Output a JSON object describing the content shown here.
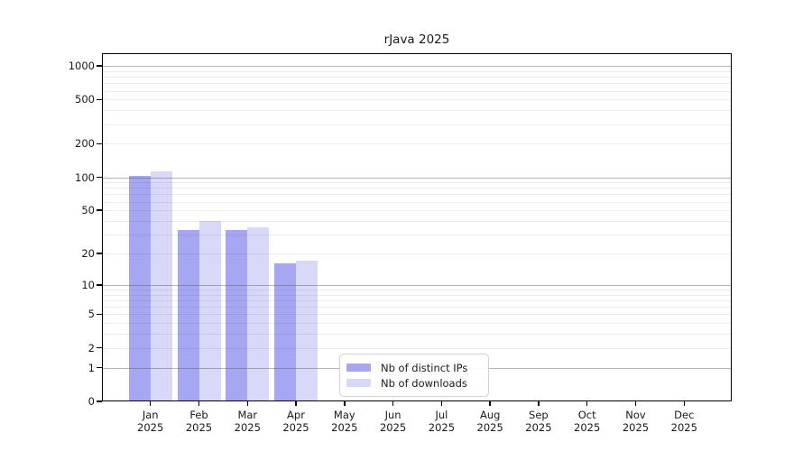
{
  "figure": {
    "title": "rJava 2025"
  },
  "chart_data": {
    "type": "bar",
    "title": "rJava 2025",
    "x_axis": {
      "months": [
        "Jan",
        "Feb",
        "Mar",
        "Apr",
        "May",
        "Jun",
        "Jul",
        "Aug",
        "Sep",
        "Oct",
        "Nov",
        "Dec"
      ],
      "year": "2025"
    },
    "y_axis": {
      "scale": "log1p",
      "ticks": [
        0,
        1,
        2,
        5,
        10,
        20,
        50,
        100,
        200,
        500,
        1000
      ],
      "tick_labels": [
        "0",
        "1",
        "2",
        "5",
        "10",
        "20",
        "50",
        "100",
        "200",
        "500",
        "1000"
      ],
      "ylim": [
        0,
        1265
      ],
      "major_gridlines": [
        1,
        10,
        100,
        1000
      ],
      "grid": true
    },
    "series": [
      {
        "name": "Nb of distinct IPs",
        "color": "#a6a6f3",
        "values": [
          102,
          33,
          33,
          16,
          null,
          null,
          null,
          null,
          null,
          null,
          null,
          null
        ]
      },
      {
        "name": "Nb of downloads",
        "color": "#d8d8f9",
        "values": [
          113,
          40,
          35,
          17,
          null,
          null,
          null,
          null,
          null,
          null,
          null,
          null
        ]
      }
    ],
    "legend": {
      "position": "lower-center-left",
      "items": [
        "Nb of distinct IPs",
        "Nb of downloads"
      ]
    }
  },
  "colors": {
    "background": "#ffffff",
    "frame": "#000000",
    "major_grid": "#b9b9b9",
    "minor_grid": "#ededed",
    "bar_distinct_ips": "#a6a6f3",
    "bar_downloads": "#d8d8f9"
  }
}
